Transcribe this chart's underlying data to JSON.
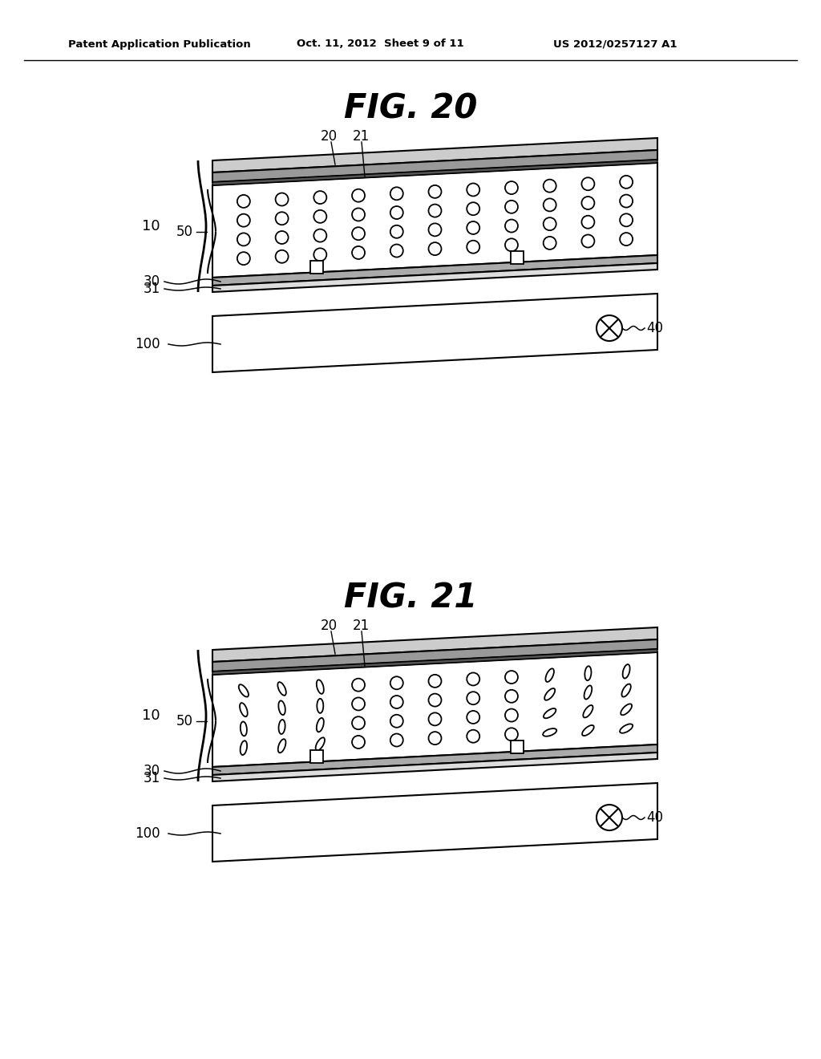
{
  "bg_color": "#ffffff",
  "fig_width": 10.24,
  "fig_height": 13.2,
  "header_text": "Patent Application Publication",
  "header_date": "Oct. 11, 2012  Sheet 9 of 11",
  "header_patent": "US 2012/0257127 A1",
  "fig20_title": "FIG. 20",
  "fig21_title": "FIG. 21",
  "line_color": "#000000"
}
